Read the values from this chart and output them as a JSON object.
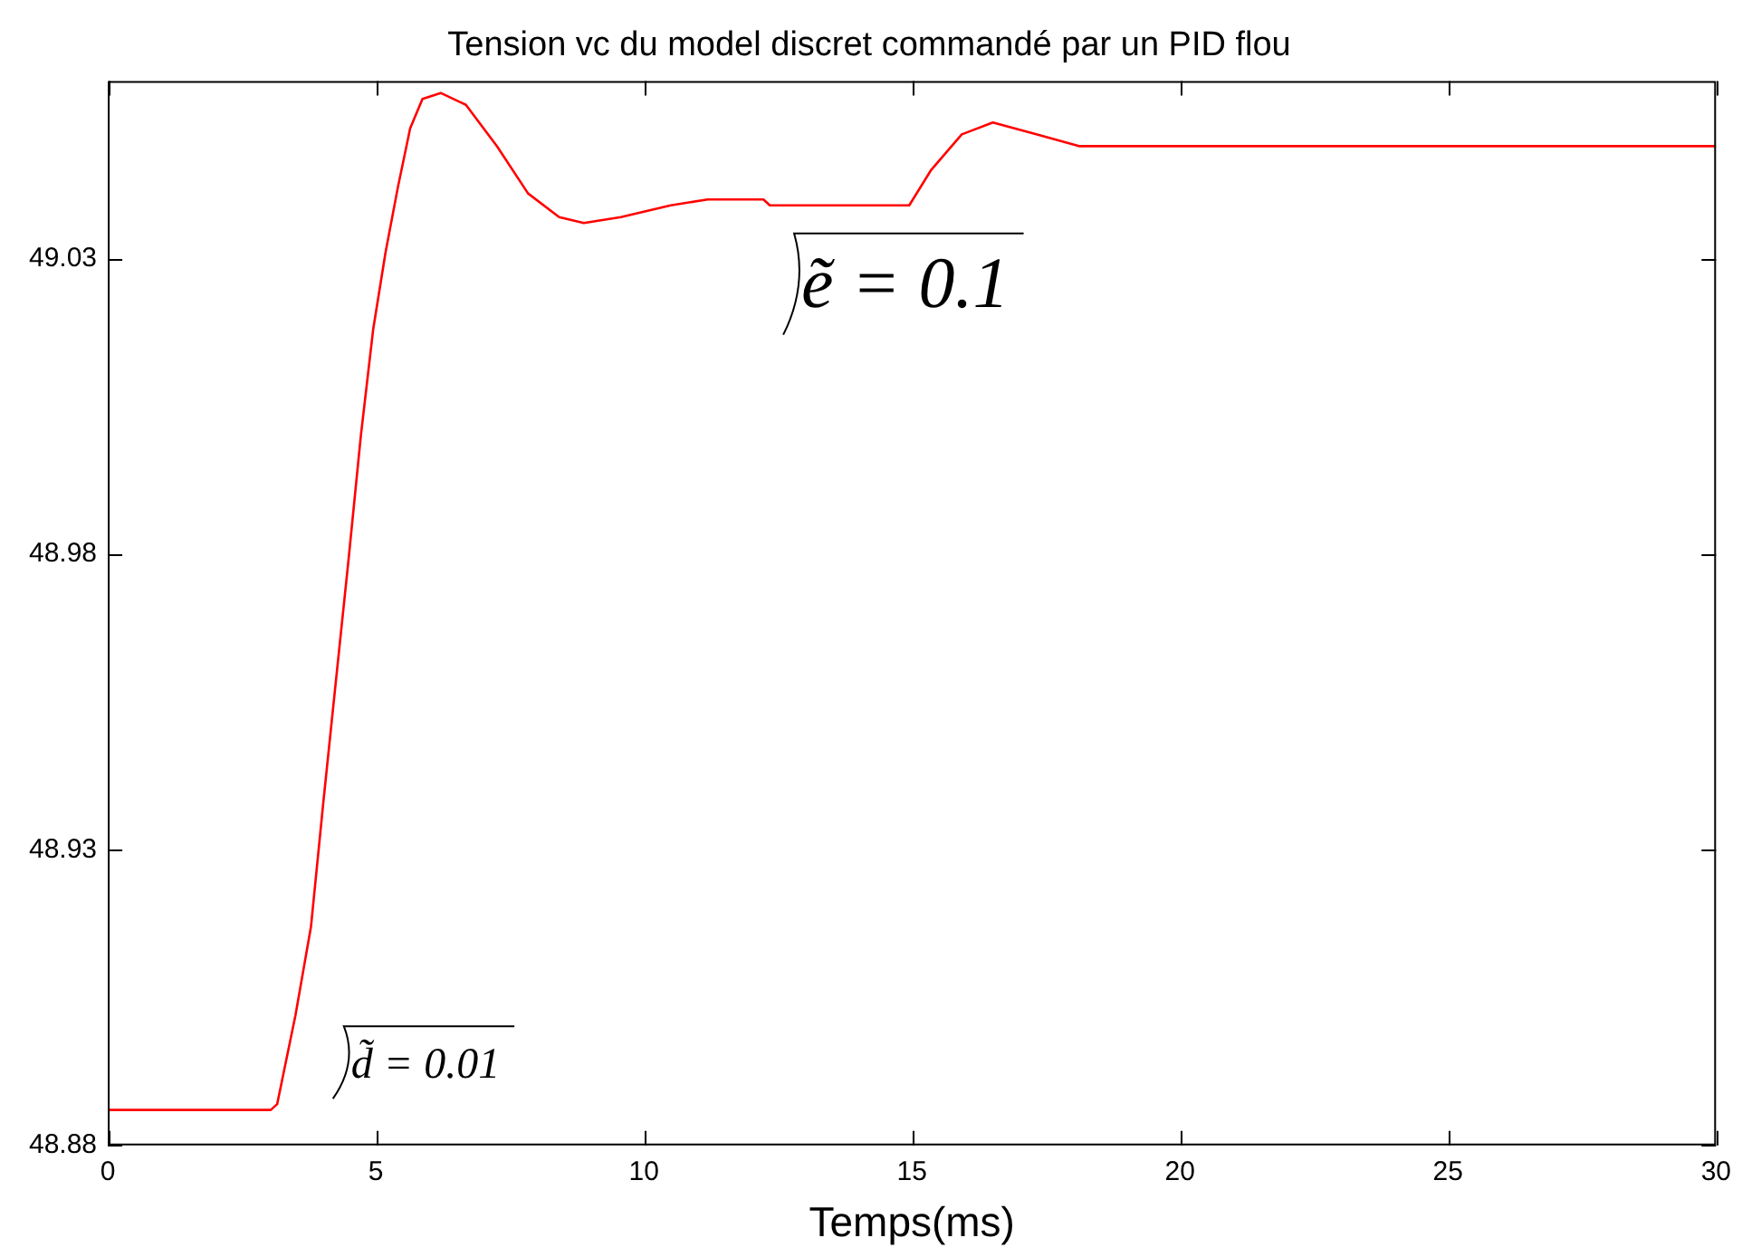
{
  "chart_data": {
    "type": "line",
    "title": "Tension vc du model discret commandé par un PID flou",
    "xlabel": "Temps(ms)",
    "x": [
      0,
      3.04,
      3.16,
      3.5,
      3.79,
      4.02,
      4.26,
      4.49,
      4.72,
      4.95,
      5.18,
      5.41,
      5.64,
      5.87,
      6.21,
      6.68,
      7.26,
      7.84,
      8.42,
      8.88,
      9.57,
      10.5,
      11.19,
      12.23,
      12.35,
      14.95,
      15.36,
      15.93,
      16.51,
      17.32,
      18.13,
      19.63,
      19.74,
      30
    ],
    "series": [
      {
        "color": "#ff0000",
        "values": [
          48.886,
          48.886,
          48.887,
          48.902,
          48.917,
          48.938,
          48.959,
          48.979,
          49.0,
          49.018,
          49.031,
          49.042,
          49.052,
          49.057,
          49.058,
          49.056,
          49.049,
          49.041,
          49.037,
          49.036,
          49.037,
          49.039,
          49.04,
          49.04,
          49.039,
          49.039,
          49.045,
          49.051,
          49.053,
          49.051,
          49.049,
          49.049,
          49.049,
          49.049
        ]
      }
    ],
    "xlim": [
      0,
      30
    ],
    "xticks": [
      0,
      5,
      10,
      15,
      20,
      25,
      30
    ],
    "ylim": [
      48.88,
      49.06
    ],
    "yticks": [
      48.88,
      48.93,
      48.98,
      49.03
    ],
    "marker": "none",
    "line_style": "solid",
    "legend": false,
    "annotations": [
      "ẽ = 0.1",
      "d̃ = 0.01"
    ]
  }
}
